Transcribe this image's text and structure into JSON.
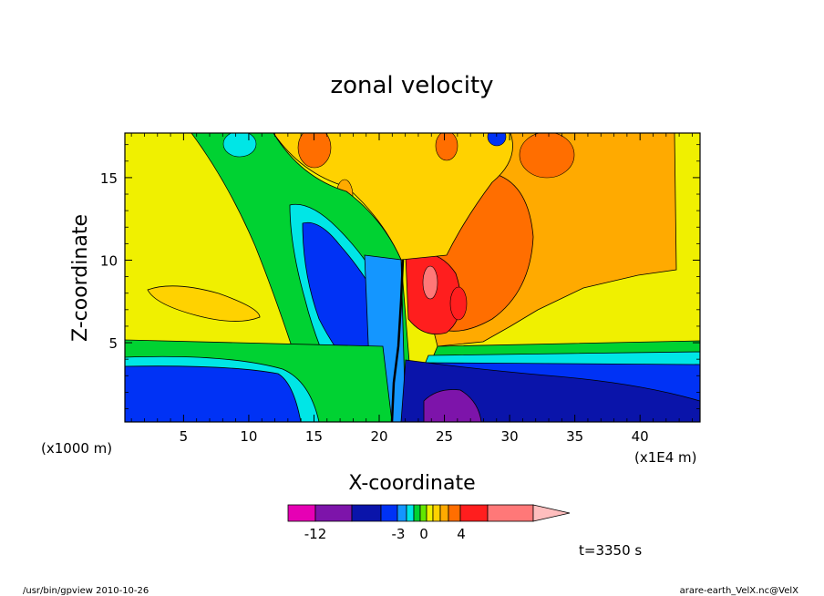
{
  "chart_data": {
    "type": "heatmap",
    "title": "zonal velocity",
    "xlabel": "X-coordinate",
    "ylabel": "Z-coordinate",
    "x_unit_left": "(x1000 m)",
    "x_unit_right": "(x1E4 m)",
    "xlim": [
      0.5,
      44.6
    ],
    "ylim": [
      0.2,
      17.7
    ],
    "x_ticks": [
      5,
      10,
      15,
      20,
      25,
      30,
      35,
      40
    ],
    "y_ticks": [
      5,
      10,
      15
    ],
    "colorbar": {
      "tick_labels": [
        "-12",
        "-3",
        "0",
        "4"
      ],
      "colors": [
        "#e600b4",
        "#7d14aa",
        "#0a14aa",
        "#0032f5",
        "#1496ff",
        "#00e6e6",
        "#00d232",
        "#64e600",
        "#f0f000",
        "#ffd200",
        "#ffaa00",
        "#ff6e00",
        "#ff1e1e",
        "#ff7878",
        "#ffbebe"
      ]
    },
    "time_label": "t=3350 s"
  },
  "footer": {
    "left": "/usr/bin/gpview   2010-10-26",
    "right": "arare-earth_VelX.nc@VelX"
  }
}
